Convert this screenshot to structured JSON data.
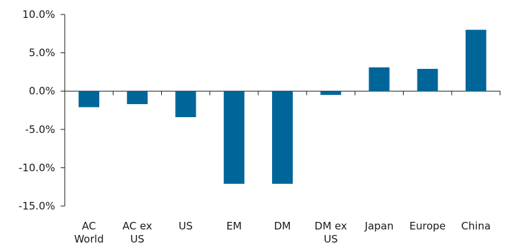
{
  "chart_data": {
    "type": "bar",
    "categories": [
      [
        "AC",
        "World"
      ],
      [
        "AC ex",
        "US"
      ],
      [
        "US"
      ],
      [
        "EM"
      ],
      [
        "DM"
      ],
      [
        "DM ex",
        "US"
      ],
      [
        "Japan"
      ],
      [
        "Europe"
      ],
      [
        "China"
      ]
    ],
    "values": [
      -2.1,
      -1.7,
      -3.4,
      -12.1,
      -12.1,
      -0.5,
      3.1,
      2.9,
      8.0
    ],
    "y_ticks": [
      "10.0%",
      "5.0%",
      "0.0%",
      "-5.0%",
      "-10.0%",
      "-15.0%"
    ],
    "y_tick_values": [
      10,
      5,
      0,
      -5,
      -10,
      -15
    ],
    "ylim": [
      -15,
      10
    ],
    "bar_color": "#006699",
    "axis_color": "#1a1a1a",
    "grid": false,
    "legend": "none",
    "title": "",
    "xlabel": "",
    "ylabel": ""
  }
}
